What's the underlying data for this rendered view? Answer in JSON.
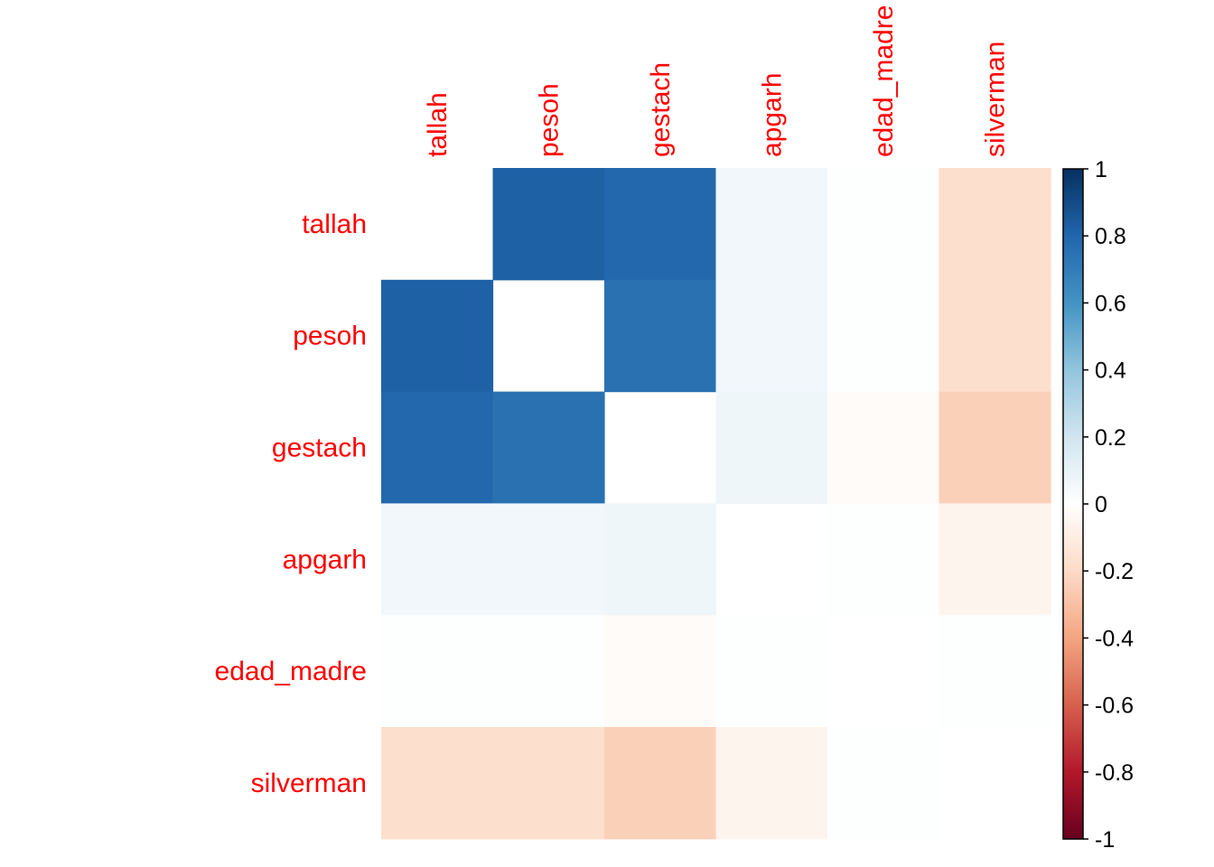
{
  "chart_data": {
    "type": "heatmap",
    "title": "",
    "xlabel": "",
    "ylabel": "",
    "variables": [
      "tallah",
      "pesoh",
      "gestach",
      "apgarh",
      "edad_madre",
      "silverman"
    ],
    "values": [
      [
        null,
        0.82,
        0.79,
        0.06,
        0.01,
        -0.18
      ],
      [
        0.82,
        null,
        0.75,
        0.06,
        0.01,
        -0.18
      ],
      [
        0.79,
        0.75,
        null,
        0.07,
        -0.02,
        -0.24
      ],
      [
        0.06,
        0.06,
        0.07,
        null,
        0.01,
        -0.06
      ],
      [
        0.01,
        0.01,
        -0.02,
        0.01,
        null,
        0.01
      ],
      [
        -0.18,
        -0.18,
        -0.24,
        -0.06,
        0.01,
        null
      ]
    ],
    "color_scale": {
      "range": [
        -1,
        1
      ],
      "ticks": [
        "1",
        "0.8",
        "0.6",
        "0.4",
        "0.2",
        "0",
        "-0.2",
        "-0.4",
        "-0.6",
        "-0.8",
        "-1"
      ],
      "stops": [
        "#67001F",
        "#B2182B",
        "#D6604D",
        "#F4A582",
        "#FDDBC7",
        "#FFFFFF",
        "#D1E5F0",
        "#92C5DE",
        "#4393C3",
        "#2166AC",
        "#053061"
      ]
    },
    "label_color": "#FF0000",
    "diagonal_shown": false
  }
}
